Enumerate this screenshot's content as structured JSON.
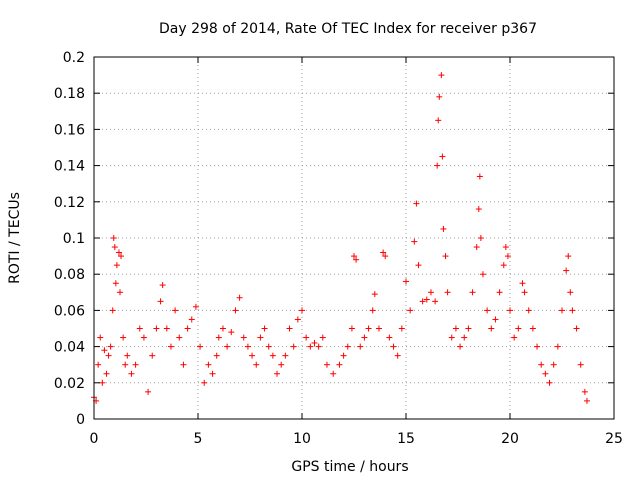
{
  "chart_data": {
    "type": "scatter",
    "title": "Day 298 of 2014, Rate Of TEC Index for receiver p367",
    "xlabel": "GPS time / hours",
    "ylabel": "ROTI / TECUs",
    "xlim": [
      0,
      25
    ],
    "ylim": [
      0,
      0.2
    ],
    "xticks": [
      0,
      5,
      10,
      15,
      20,
      25
    ],
    "xtick_labels": [
      "0",
      "5",
      "10",
      "15",
      "20",
      "25"
    ],
    "yticks": [
      0,
      0.02,
      0.04,
      0.06,
      0.08,
      0.1,
      0.12,
      0.14,
      0.16,
      0.18,
      0.2
    ],
    "ytick_labels": [
      "0",
      "0.02",
      "0.04",
      "0.06",
      "0.08",
      "0.1",
      "0.12",
      "0.14",
      "0.16",
      "0.18",
      "0.2"
    ],
    "grid": true,
    "marker": "plus",
    "color": "#ff0000",
    "series": [
      {
        "name": "ROTI",
        "points": [
          [
            0.0,
            0.012
          ],
          [
            0.1,
            0.01
          ],
          [
            0.2,
            0.03
          ],
          [
            0.3,
            0.045
          ],
          [
            0.4,
            0.02
          ],
          [
            0.5,
            0.038
          ],
          [
            0.6,
            0.025
          ],
          [
            0.7,
            0.035
          ],
          [
            0.8,
            0.04
          ],
          [
            0.9,
            0.06
          ],
          [
            0.95,
            0.1
          ],
          [
            1.0,
            0.095
          ],
          [
            1.05,
            0.075
          ],
          [
            1.1,
            0.085
          ],
          [
            1.2,
            0.092
          ],
          [
            1.25,
            0.07
          ],
          [
            1.3,
            0.09
          ],
          [
            1.4,
            0.045
          ],
          [
            1.5,
            0.03
          ],
          [
            1.6,
            0.035
          ],
          [
            1.8,
            0.025
          ],
          [
            2.0,
            0.03
          ],
          [
            2.2,
            0.05
          ],
          [
            2.4,
            0.045
          ],
          [
            2.6,
            0.015
          ],
          [
            2.8,
            0.035
          ],
          [
            3.0,
            0.05
          ],
          [
            3.2,
            0.065
          ],
          [
            3.3,
            0.074
          ],
          [
            3.5,
            0.05
          ],
          [
            3.7,
            0.04
          ],
          [
            3.9,
            0.06
          ],
          [
            4.1,
            0.045
          ],
          [
            4.3,
            0.03
          ],
          [
            4.5,
            0.05
          ],
          [
            4.7,
            0.055
          ],
          [
            4.9,
            0.062
          ],
          [
            5.1,
            0.04
          ],
          [
            5.3,
            0.02
          ],
          [
            5.5,
            0.03
          ],
          [
            5.7,
            0.025
          ],
          [
            5.9,
            0.035
          ],
          [
            6.0,
            0.045
          ],
          [
            6.2,
            0.05
          ],
          [
            6.4,
            0.04
          ],
          [
            6.6,
            0.048
          ],
          [
            6.8,
            0.06
          ],
          [
            7.0,
            0.067
          ],
          [
            7.2,
            0.045
          ],
          [
            7.4,
            0.04
          ],
          [
            7.6,
            0.035
          ],
          [
            7.8,
            0.03
          ],
          [
            8.0,
            0.045
          ],
          [
            8.2,
            0.05
          ],
          [
            8.4,
            0.04
          ],
          [
            8.6,
            0.035
          ],
          [
            8.8,
            0.025
          ],
          [
            9.0,
            0.03
          ],
          [
            9.2,
            0.035
          ],
          [
            9.4,
            0.05
          ],
          [
            9.6,
            0.04
          ],
          [
            9.8,
            0.055
          ],
          [
            10.0,
            0.06
          ],
          [
            10.2,
            0.045
          ],
          [
            10.4,
            0.04
          ],
          [
            10.6,
            0.042
          ],
          [
            10.8,
            0.04
          ],
          [
            11.0,
            0.045
          ],
          [
            11.2,
            0.03
          ],
          [
            11.5,
            0.025
          ],
          [
            11.8,
            0.03
          ],
          [
            12.0,
            0.035
          ],
          [
            12.2,
            0.04
          ],
          [
            12.4,
            0.05
          ],
          [
            12.5,
            0.09
          ],
          [
            12.6,
            0.088
          ],
          [
            12.8,
            0.04
          ],
          [
            13.0,
            0.045
          ],
          [
            13.2,
            0.05
          ],
          [
            13.4,
            0.06
          ],
          [
            13.5,
            0.069
          ],
          [
            13.7,
            0.05
          ],
          [
            13.9,
            0.092
          ],
          [
            14.0,
            0.09
          ],
          [
            14.2,
            0.045
          ],
          [
            14.4,
            0.04
          ],
          [
            14.6,
            0.035
          ],
          [
            14.8,
            0.05
          ],
          [
            15.0,
            0.076
          ],
          [
            15.2,
            0.06
          ],
          [
            15.4,
            0.098
          ],
          [
            15.5,
            0.119
          ],
          [
            15.6,
            0.085
          ],
          [
            15.8,
            0.065
          ],
          [
            16.0,
            0.066
          ],
          [
            16.2,
            0.07
          ],
          [
            16.4,
            0.065
          ],
          [
            16.5,
            0.14
          ],
          [
            16.55,
            0.165
          ],
          [
            16.6,
            0.178
          ],
          [
            16.7,
            0.19
          ],
          [
            16.75,
            0.145
          ],
          [
            16.8,
            0.105
          ],
          [
            16.9,
            0.09
          ],
          [
            17.0,
            0.07
          ],
          [
            17.2,
            0.045
          ],
          [
            17.4,
            0.05
          ],
          [
            17.6,
            0.04
          ],
          [
            17.8,
            0.045
          ],
          [
            18.0,
            0.05
          ],
          [
            18.2,
            0.07
          ],
          [
            18.4,
            0.095
          ],
          [
            18.5,
            0.116
          ],
          [
            18.55,
            0.134
          ],
          [
            18.6,
            0.1
          ],
          [
            18.7,
            0.08
          ],
          [
            18.9,
            0.06
          ],
          [
            19.1,
            0.05
          ],
          [
            19.3,
            0.055
          ],
          [
            19.5,
            0.07
          ],
          [
            19.7,
            0.085
          ],
          [
            19.8,
            0.095
          ],
          [
            19.9,
            0.09
          ],
          [
            20.0,
            0.06
          ],
          [
            20.2,
            0.045
          ],
          [
            20.4,
            0.05
          ],
          [
            20.6,
            0.075
          ],
          [
            20.7,
            0.07
          ],
          [
            20.9,
            0.06
          ],
          [
            21.1,
            0.05
          ],
          [
            21.3,
            0.04
          ],
          [
            21.5,
            0.03
          ],
          [
            21.7,
            0.025
          ],
          [
            21.9,
            0.02
          ],
          [
            22.1,
            0.03
          ],
          [
            22.3,
            0.04
          ],
          [
            22.5,
            0.06
          ],
          [
            22.7,
            0.082
          ],
          [
            22.8,
            0.09
          ],
          [
            22.9,
            0.07
          ],
          [
            23.0,
            0.06
          ],
          [
            23.2,
            0.05
          ],
          [
            23.4,
            0.03
          ],
          [
            23.6,
            0.015
          ],
          [
            23.7,
            0.01
          ]
        ]
      }
    ]
  }
}
